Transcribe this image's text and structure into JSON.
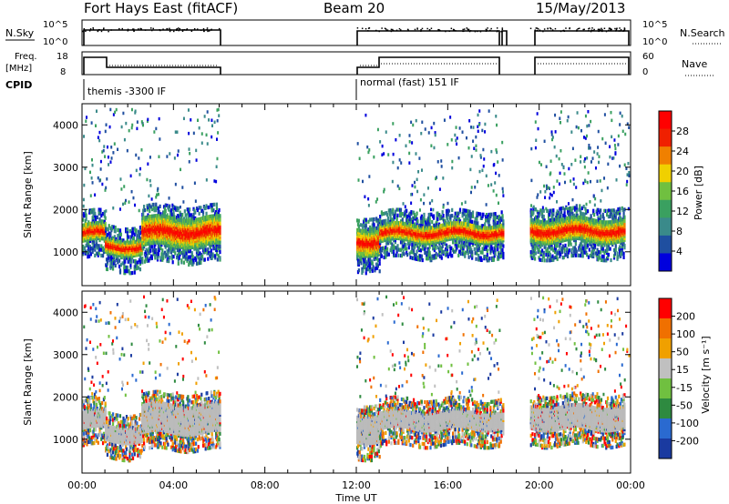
{
  "header": {
    "station": "Fort Hays East (fitACF)",
    "beam": "Beam 20",
    "date": "15/May/2013"
  },
  "top_panels": {
    "nsky_label": "N.Sky",
    "nsky_ticks": [
      "10^5",
      "10^0"
    ],
    "nsearch_label": "N.Search",
    "nsearch_ticks": [
      "10^5",
      "10^0"
    ],
    "freq_label": "Freq.",
    "freq_unit": "[MHz]",
    "freq_ticks": [
      "18",
      "8"
    ],
    "nave_label": "Nave",
    "nave_ticks": [
      "60",
      "0"
    ],
    "cpid_label": "CPID",
    "cpid_modes": [
      {
        "text": "themis -3300 IF",
        "start_h": 0
      },
      {
        "text": "normal (fast) 151 IF",
        "start_h": 12
      }
    ]
  },
  "chart_data": [
    {
      "type": "heatmap",
      "name": "power",
      "xlabel": "",
      "ylabel": "Slant Range [km]",
      "xlim": [
        0,
        24
      ],
      "ylim": [
        200,
        4500
      ],
      "yticks": [
        "1000",
        "2000",
        "3000",
        "4000"
      ],
      "colorbar_label": "Power [dB]",
      "colorbar_ticks": [
        "4",
        "8",
        "12",
        "16",
        "20",
        "24",
        "28"
      ],
      "scatter_bands": [
        {
          "h0": 0.0,
          "h1": 1.0,
          "r0": 1300,
          "r1": 1700
        },
        {
          "h0": 1.0,
          "h1": 2.6,
          "r0": 1000,
          "r1": 1350
        },
        {
          "h0": 2.6,
          "h1": 6.0,
          "r0": 1200,
          "r1": 1850
        },
        {
          "h0": 12.0,
          "h1": 13.0,
          "r0": 1000,
          "r1": 1600
        },
        {
          "h0": 13.0,
          "h1": 18.4,
          "r0": 1300,
          "r1": 1700
        },
        {
          "h0": 19.6,
          "h1": 23.7,
          "r0": 1300,
          "r1": 1800
        }
      ]
    },
    {
      "type": "heatmap",
      "name": "velocity",
      "xlabel": "Time UT",
      "ylabel": "Slant Range [km]",
      "xlim": [
        0,
        24
      ],
      "ylim": [
        200,
        4500
      ],
      "xticks": [
        "00:00",
        "04:00",
        "08:00",
        "12:00",
        "16:00",
        "20:00",
        "00:00"
      ],
      "yticks": [
        "1000",
        "2000",
        "3000",
        "4000"
      ],
      "colorbar_label": "Velocity [m s⁻¹]",
      "colorbar_ticks": [
        "200",
        "100",
        "50",
        "15",
        "-15",
        "-50",
        "-100",
        "-200"
      ]
    }
  ],
  "colors": {
    "power_scale": [
      "#0000dd",
      "#1f4fa0",
      "#3a8a8a",
      "#3aa060",
      "#70c040",
      "#f0d000",
      "#f08000",
      "#f02000",
      "#ff0000"
    ],
    "velocity_scale": [
      "#1a3aa0",
      "#2a6ad0",
      "#2e8a40",
      "#70c040",
      "#c0c0c0",
      "#f0a000",
      "#f07000",
      "#ff0000"
    ],
    "ground_scatter": "#bbbbbb"
  }
}
